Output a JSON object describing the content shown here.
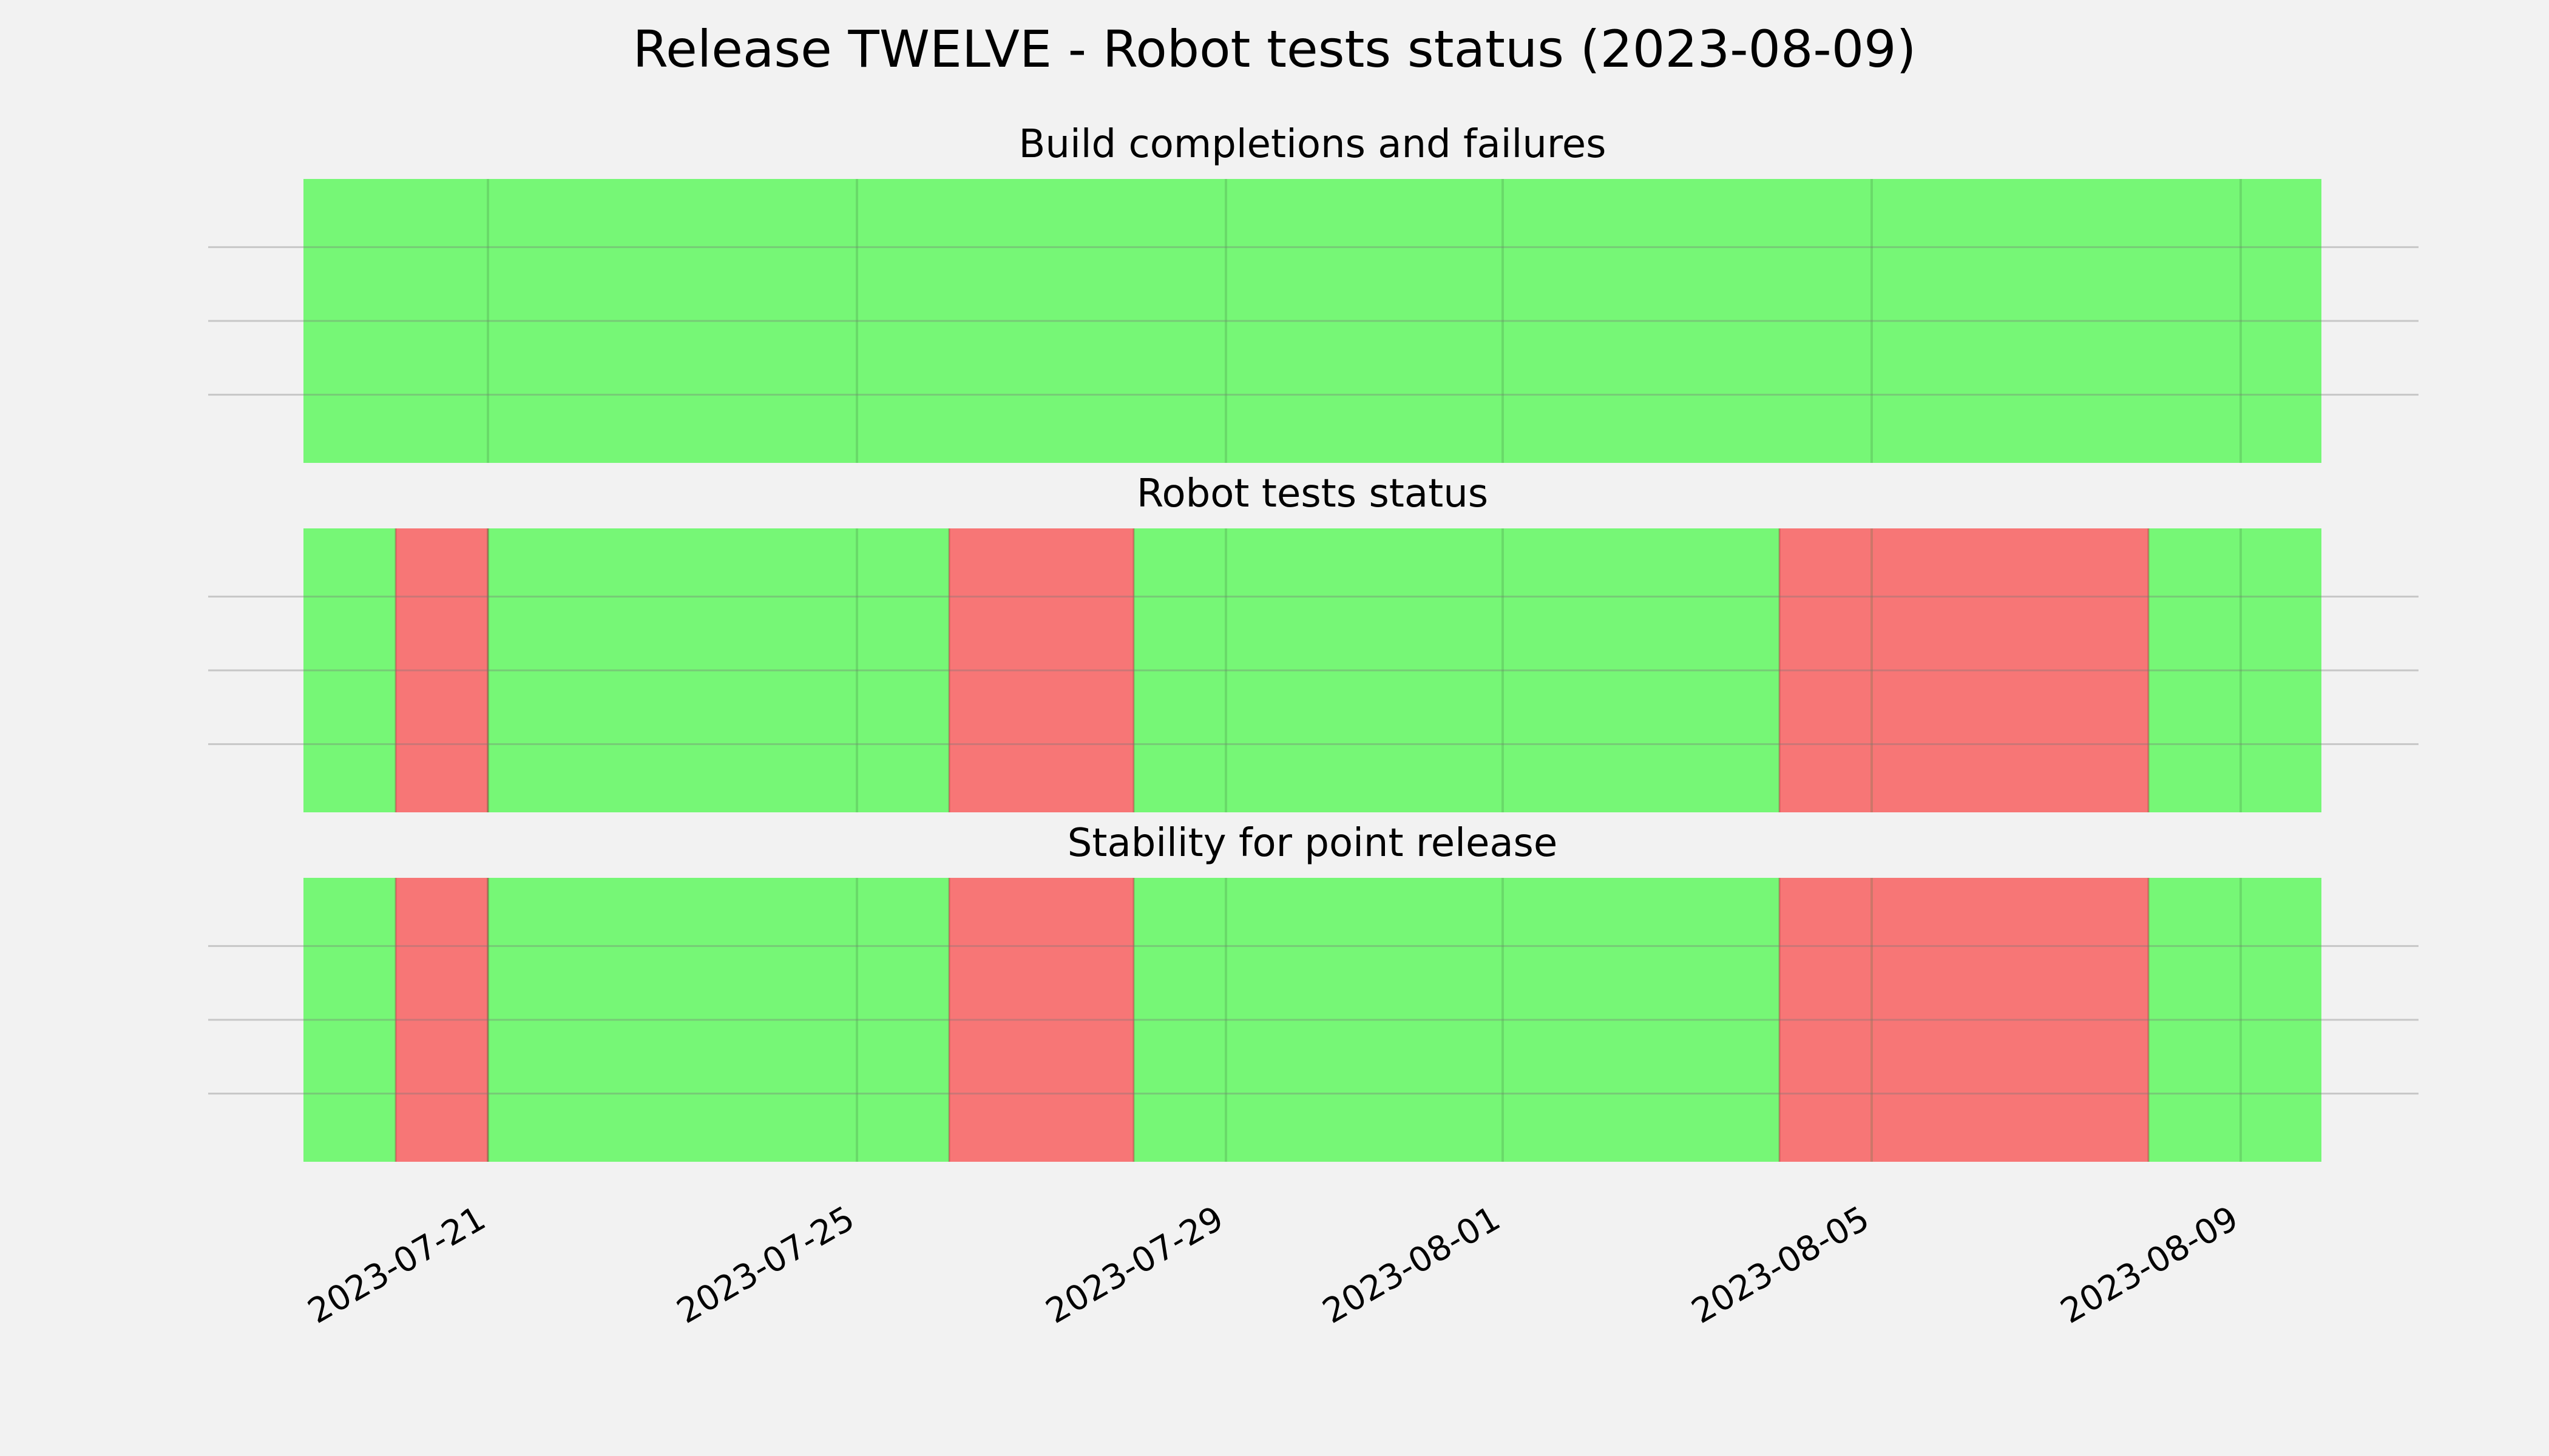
{
  "chart_data": {
    "type": "timeline",
    "title": "Release TWELVE - Robot tests status (2023-08-09)",
    "x_axis": {
      "type": "date",
      "range": [
        "2023-07-19",
        "2023-08-09T21:00"
      ],
      "tick_labels": [
        "2023-07-21",
        "2023-07-25",
        "2023-07-29",
        "2023-08-01",
        "2023-08-05",
        "2023-08-09"
      ]
    },
    "grid": true,
    "status_colors": {
      "pass": "#76f776",
      "fail": "#f77676"
    },
    "panels": [
      {
        "title": "Build completions and failures",
        "segments": [
          {
            "start": "2023-07-19",
            "end": "2023-08-09T21:00",
            "status": "pass"
          }
        ]
      },
      {
        "title": "Robot tests status",
        "segments": [
          {
            "start": "2023-07-19",
            "end": "2023-07-20",
            "status": "pass"
          },
          {
            "start": "2023-07-20",
            "end": "2023-07-21",
            "status": "fail"
          },
          {
            "start": "2023-07-21",
            "end": "2023-07-26",
            "status": "pass"
          },
          {
            "start": "2023-07-26",
            "end": "2023-07-28",
            "status": "fail"
          },
          {
            "start": "2023-07-28",
            "end": "2023-08-04",
            "status": "pass"
          },
          {
            "start": "2023-08-04",
            "end": "2023-08-08",
            "status": "fail"
          },
          {
            "start": "2023-08-08",
            "end": "2023-08-09T21:00",
            "status": "pass"
          }
        ]
      },
      {
        "title": "Stability for point release",
        "segments": [
          {
            "start": "2023-07-19",
            "end": "2023-07-20",
            "status": "pass"
          },
          {
            "start": "2023-07-20",
            "end": "2023-07-21",
            "status": "fail"
          },
          {
            "start": "2023-07-21",
            "end": "2023-07-26",
            "status": "pass"
          },
          {
            "start": "2023-07-26",
            "end": "2023-07-28",
            "status": "fail"
          },
          {
            "start": "2023-07-28",
            "end": "2023-08-04",
            "status": "pass"
          },
          {
            "start": "2023-08-04",
            "end": "2023-08-08",
            "status": "fail"
          },
          {
            "start": "2023-08-08",
            "end": "2023-08-09T21:00",
            "status": "pass"
          }
        ]
      }
    ]
  }
}
